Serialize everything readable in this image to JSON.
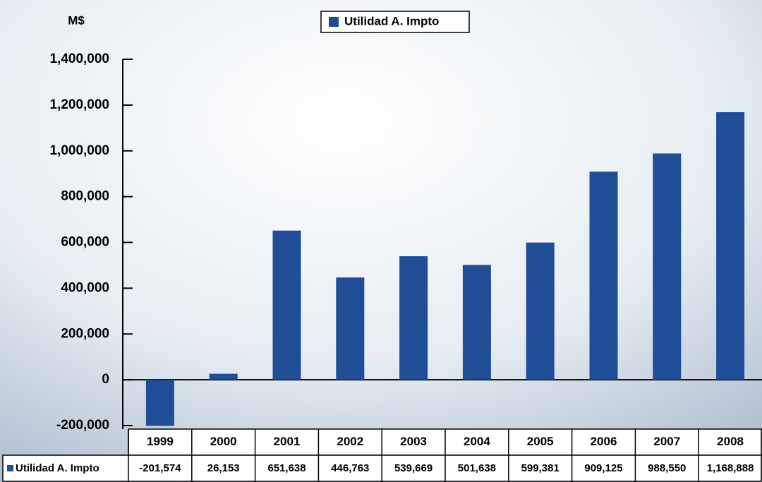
{
  "chart_data": {
    "type": "bar",
    "y_label": "M$",
    "categories": [
      "1999",
      "2000",
      "2001",
      "2002",
      "2003",
      "2004",
      "2005",
      "2006",
      "2007",
      "2008"
    ],
    "series": [
      {
        "name": "Utilidad A. Impto",
        "color": "#1f4e96",
        "values": [
          -201574,
          26153,
          651638,
          446763,
          539669,
          501638,
          599381,
          909125,
          988550,
          1168888
        ],
        "value_labels": [
          "-201,574",
          "26,153",
          "651,638",
          "446,763",
          "539,669",
          "501,638",
          "599,381",
          "909,125",
          "988,550",
          "1,168,888"
        ]
      }
    ],
    "ylim": [
      -200000,
      1400000
    ],
    "yticks": [
      {
        "value": -200000,
        "label": "-200,000"
      },
      0,
      {
        "value": 200000,
        "label": "200,000"
      },
      {
        "value": 400000,
        "label": "400,000"
      },
      {
        "value": 600000,
        "label": "600,000"
      },
      {
        "value": 800000,
        "label": "800,000"
      },
      {
        "value": 1000000,
        "label": "1,000,000"
      },
      {
        "value": 1200000,
        "label": "1,200,000"
      },
      {
        "value": 1400000,
        "label": "1,400,000"
      }
    ],
    "legend": "top"
  }
}
